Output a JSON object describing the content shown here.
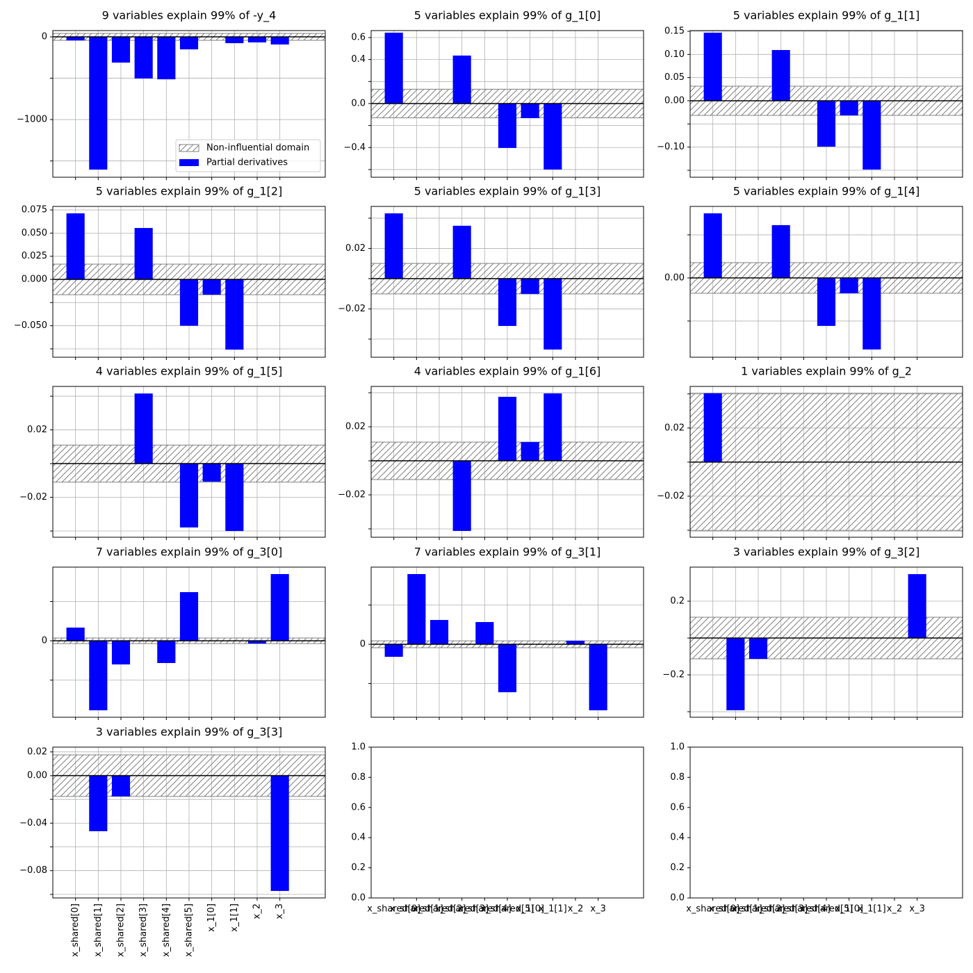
{
  "chart_data": [
    {
      "type": "bar",
      "title": "9 variables explain 99% of -y_4",
      "color": "#0000ff",
      "grid": true,
      "values": [
        -42,
        -1605,
        -311,
        -504,
        -513,
        -151,
        0,
        -76,
        -67,
        -92
      ],
      "threshold": 42,
      "xlim": [
        -1,
        11
      ],
      "ylim": [
        -1697,
        76
      ],
      "yticks": [
        0,
        {
          "value": -1000,
          "label": "−1000"
        }
      ],
      "minor_yticks": [
        -500,
        -1500
      ],
      "legend": [
        "Non-influential domain",
        "Partial derivatives"
      ],
      "legend_loc": "lower right"
    },
    {
      "type": "bar",
      "title": "5 variables explain 99% of g_1[0]",
      "color": "#0000ff",
      "grid": true,
      "values": [
        0.644,
        0,
        0,
        0.436,
        0,
        -0.404,
        -0.133,
        -0.6,
        0,
        0
      ],
      "threshold": 0.13,
      "xlim": [
        -1,
        11
      ],
      "ylim": [
        -0.67,
        0.663
      ],
      "yticks": [
        0.6,
        0.4,
        {
          "value": 0,
          "label": "0.0"
        },
        {
          "value": -0.4,
          "label": "−0.4"
        }
      ],
      "minor_yticks": [
        0.2,
        -0.2,
        -0.6
      ]
    },
    {
      "type": "bar",
      "title": "5 variables explain 99% of g_1[1]",
      "color": "#0000ff",
      "grid": true,
      "values": [
        0.147,
        0,
        0,
        0.1095,
        0,
        -0.099,
        -0.0315,
        -0.1485,
        0,
        0
      ],
      "threshold": 0.0315,
      "xlim": [
        -1,
        11
      ],
      "ylim": [
        -0.165,
        0.1515
      ],
      "yticks": [
        0.15,
        {
          "value": 0.1,
          "label": "0.10"
        },
        0.05,
        {
          "value": 0,
          "label": "0.00"
        },
        {
          "value": -0.1,
          "label": "−0.10"
        }
      ],
      "minor_yticks": [
        -0.05,
        -0.15
      ]
    },
    {
      "type": "bar",
      "title": "5 variables explain 99% of g_1[2]",
      "color": "#0000ff",
      "grid": true,
      "values": [
        0.0713,
        0,
        0,
        0.0555,
        0,
        -0.05,
        -0.0165,
        -0.0758,
        0,
        0
      ],
      "threshold": 0.0165,
      "xlim": [
        -1,
        11
      ],
      "ylim": [
        -0.084,
        0.0788
      ],
      "yticks": [
        0.075,
        {
          "value": 0.05,
          "label": "0.050"
        },
        0.025,
        {
          "value": 0,
          "label": "0.000"
        },
        {
          "value": -0.05,
          "label": "−0.050"
        }
      ],
      "minor_yticks": [
        -0.025,
        -0.075
      ]
    },
    {
      "type": "bar",
      "title": "5 variables explain 99% of g_1[3]",
      "color": "#0000ff",
      "grid": true,
      "values": [
        0.0432,
        0,
        0,
        0.035,
        0,
        -0.0313,
        -0.0101,
        -0.0469,
        0,
        0
      ],
      "threshold": 0.0101,
      "xlim": [
        -1,
        11
      ],
      "ylim": [
        -0.052,
        0.0478
      ],
      "yticks": [
        0.02,
        {
          "value": -0.02,
          "label": "−0.02"
        }
      ],
      "minor_yticks": [
        0.04,
        0,
        -0.04
      ]
    },
    {
      "type": "bar",
      "title": "5 variables explain 99% of g_1[4]",
      "color": "#0000ff",
      "grid": true,
      "values": [
        0.015,
        0,
        0,
        0.01226,
        0,
        -0.01113,
        -0.00355,
        -0.0166,
        0,
        0
      ],
      "threshold": 0.00355,
      "xlim": [
        -1,
        11
      ],
      "ylim": [
        -0.0184,
        0.0166
      ],
      "yticks": [
        {
          "value": 0,
          "label": "0.00"
        }
      ],
      "minor_yticks": [
        0.01,
        -0.01
      ]
    },
    {
      "type": "bar",
      "title": "4 variables explain 99% of g_1[5]",
      "color": "#0000ff",
      "grid": true,
      "values": [
        0,
        0,
        0,
        0.0416,
        0,
        -0.0379,
        -0.0107,
        -0.04,
        0,
        0
      ],
      "threshold": 0.011,
      "xlim": [
        -1,
        11
      ],
      "ylim": [
        -0.0437,
        0.0458
      ],
      "yticks": [
        0.02,
        {
          "value": -0.02,
          "label": "−0.02"
        }
      ],
      "minor_yticks": [
        0.04,
        0,
        -0.04
      ]
    },
    {
      "type": "bar",
      "title": "4 variables explain 99% of g_1[6]",
      "color": "#0000ff",
      "grid": true,
      "values": [
        0,
        0,
        0,
        -0.0412,
        0,
        0.0376,
        0.011,
        0.0396,
        0,
        0
      ],
      "threshold": 0.011,
      "xlim": [
        -1,
        11
      ],
      "ylim": [
        -0.0449,
        0.0437
      ],
      "yticks": [
        0.02,
        {
          "value": -0.02,
          "label": "−0.02"
        }
      ],
      "minor_yticks": [
        0.04,
        0,
        -0.04
      ]
    },
    {
      "type": "bar",
      "title": "1 variables explain 99% of g_2",
      "color": "#0000ff",
      "grid": true,
      "values": [
        0.0404,
        0,
        0,
        0,
        0,
        0,
        0,
        0,
        0,
        0
      ],
      "threshold": 0.0404,
      "xlim": [
        -1,
        11
      ],
      "ylim": [
        -0.0441,
        0.0444
      ],
      "yticks": [
        0.02,
        {
          "value": -0.02,
          "label": "−0.02"
        }
      ],
      "minor_yticks": [
        0.04,
        0,
        -0.04
      ]
    },
    {
      "type": "bar",
      "title": "7 variables explain 99% of g_3[0]",
      "color": "#0000ff",
      "grid": true,
      "values": [
        0.336,
        -1.77,
        -0.602,
        0,
        -0.566,
        1.239,
        0,
        0,
        -0.071,
        1.699
      ],
      "threshold": 0.071,
      "xlim": [
        -1,
        11
      ],
      "ylim": [
        -1.947,
        1.876
      ],
      "yticks": [
        0
      ],
      "minor_yticks": [
        1,
        -1
      ]
    },
    {
      "type": "bar",
      "title": "7 variables explain 99% of g_3[1]",
      "color": "#0000ff",
      "grid": true,
      "values": [
        -0.319,
        1.788,
        0.619,
        0,
        0.566,
        -1.221,
        0,
        0,
        0.088,
        -1.681
      ],
      "threshold": 0.088,
      "xlim": [
        -1,
        11
      ],
      "ylim": [
        -1.858,
        1.965
      ],
      "yticks": [
        0
      ],
      "minor_yticks": [
        1,
        -1
      ]
    },
    {
      "type": "bar",
      "title": "3 variables explain 99% of g_3[2]",
      "color": "#0000ff",
      "grid": true,
      "values": [
        0,
        -0.392,
        -0.113,
        0,
        0,
        0,
        0,
        0,
        0,
        0.347
      ],
      "threshold": 0.113,
      "xlim": [
        -1,
        11
      ],
      "ylim": [
        -0.43,
        0.385
      ],
      "yticks": [
        0.2,
        {
          "value": -0.2,
          "label": "−0.2"
        }
      ],
      "minor_yticks": [
        0,
        -0.4
      ]
    },
    {
      "type": "bar",
      "title": "3 variables explain 99% of g_3[3]",
      "color": "#0000ff",
      "grid": true,
      "categories": [
        "x_shared[0]",
        "x_shared[1]",
        "x_shared[2]",
        "x_shared[3]",
        "x_shared[4]",
        "x_shared[5]",
        "x_1[0]",
        "x_1[1]",
        "x_2",
        "x_3"
      ],
      "values": [
        0,
        -0.0468,
        -0.0175,
        0,
        0,
        0,
        0,
        0,
        0,
        -0.0971
      ],
      "threshold": 0.0175,
      "xlim": [
        -1,
        11
      ],
      "ylim": [
        -0.103,
        0.024
      ],
      "yticks": [
        0.02,
        {
          "value": 0,
          "label": "0.00"
        },
        {
          "value": -0.04,
          "label": "−0.04"
        },
        {
          "value": -0.08,
          "label": "−0.08"
        }
      ],
      "minor_yticks": [
        -0.02,
        -0.06,
        -0.1
      ]
    },
    {
      "type": "empty",
      "grid": false,
      "categories": [
        "x_shared[0]",
        "x_shared[1]",
        "x_shared[2]",
        "x_shared[3]",
        "x_shared[4]",
        "x_shared[5]",
        "x_1[0]",
        "x_1[1]",
        "x_2",
        "x_3"
      ],
      "xlim": [
        -1,
        11
      ],
      "ylim": [
        0,
        1
      ],
      "yticks": [
        {
          "value": 0,
          "label": "0.0"
        },
        0.2,
        0.4,
        0.6,
        0.8,
        {
          "value": 1,
          "label": "1.0"
        }
      ]
    },
    {
      "type": "empty",
      "grid": false,
      "categories": [
        "x_shared[0]",
        "x_shared[1]",
        "x_shared[2]",
        "x_shared[3]",
        "x_shared[4]",
        "x_shared[5]",
        "x_1[0]",
        "x_1[1]",
        "x_2",
        "x_3"
      ],
      "xlim": [
        -1,
        11
      ],
      "ylim": [
        0,
        1
      ],
      "yticks": [
        {
          "value": 0,
          "label": "0.0"
        },
        0.2,
        0.4,
        0.6,
        0.8,
        {
          "value": 1,
          "label": "1.0"
        }
      ]
    }
  ]
}
